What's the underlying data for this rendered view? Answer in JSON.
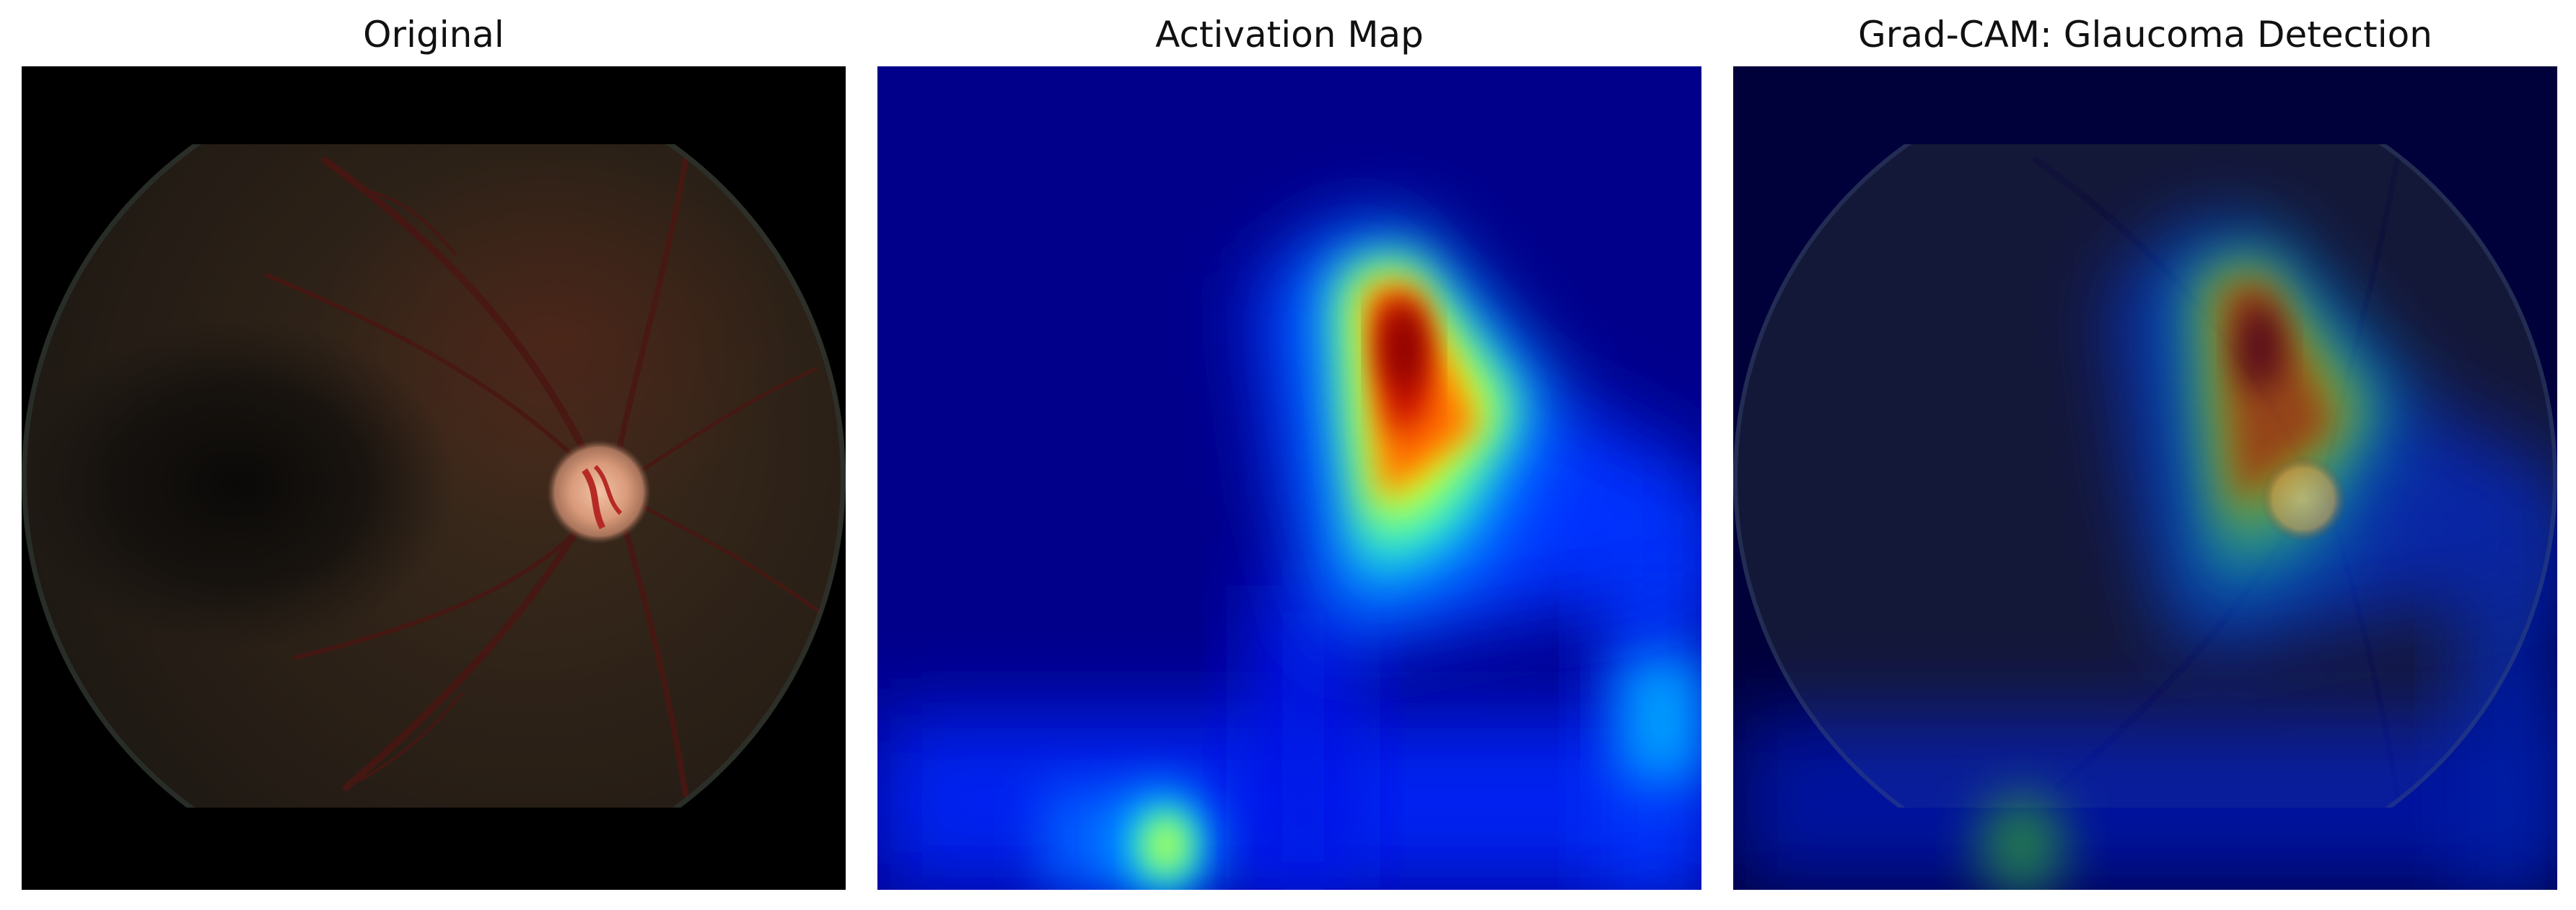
{
  "panels": [
    {
      "id": "original",
      "title": "Original"
    },
    {
      "id": "activation",
      "title": "Activation Map"
    },
    {
      "id": "overlay",
      "title": "Grad-CAM: Glaucoma Detection"
    }
  ],
  "colors": {
    "background": "#ffffff",
    "fundus_border": "#000000",
    "heatmap_low": "#00008b",
    "heatmap_high": "#8b0000"
  }
}
